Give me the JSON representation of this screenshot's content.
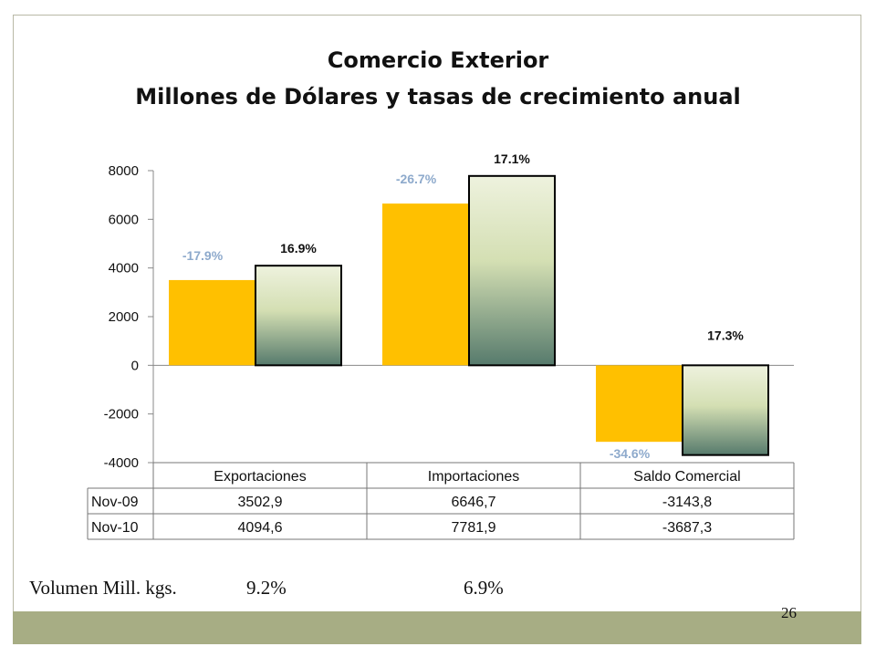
{
  "slide": {
    "title_line1": "Comercio Exterior",
    "title_line2": "Millones de Dólares y tasas de crecimiento anual",
    "volume_label": "Volumen Mill. kgs.",
    "volume_exports": "9.2%",
    "volume_imports": "6.9%",
    "page_number": "26"
  },
  "colors": {
    "series1": "#ffc000",
    "series2_top": "#eef2de",
    "series2_mid": "#d4dfb3",
    "series2_bottom": "#567a6c",
    "label1": "#8eaacc",
    "label2": "#111111",
    "footer_band": "#a7ad84"
  },
  "chart_data": {
    "type": "bar",
    "categories": [
      "Exportaciones",
      "Importaciones",
      "Saldo Comercial"
    ],
    "series": [
      {
        "name": "Nov-09",
        "values": [
          3502.9,
          6646.7,
          -3143.8
        ],
        "display_values": [
          "3502,9",
          "6646,7",
          "-3143,8"
        ],
        "growth_labels": [
          "-17.9%",
          "-26.7%",
          "-34.6%"
        ]
      },
      {
        "name": "Nov-10",
        "values": [
          4094.6,
          7781.9,
          -3687.3
        ],
        "display_values": [
          "4094,6",
          "7781,9",
          "-3687,3"
        ],
        "growth_labels": [
          "16.9%",
          "17.1%",
          "17.3%"
        ]
      }
    ],
    "ylim": [
      -4000,
      8000
    ],
    "yticks": [
      8000,
      6000,
      4000,
      2000,
      0,
      -2000,
      -4000
    ],
    "grid": false,
    "legend": "data table below chart"
  }
}
